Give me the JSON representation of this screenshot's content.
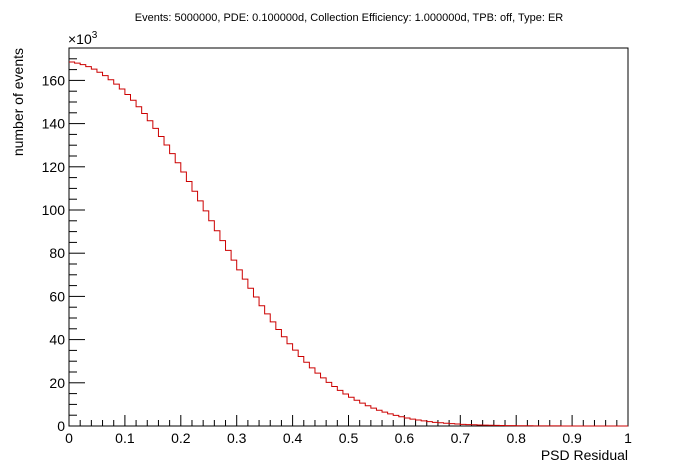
{
  "chart_data": {
    "type": "bar",
    "title": "Events: 5000000, PDE: 0.100000d, Collection Efficiency: 1.000000d, TPB: off, Type: ER",
    "xlabel": "PSD Residual",
    "ylabel": "number of events",
    "y_multiplier_label": "×10",
    "y_multiplier_exponent": "3",
    "xlim": [
      0,
      1
    ],
    "ylim": [
      0,
      175
    ],
    "grid": false,
    "legend": "none",
    "line_color": "#cc0000",
    "bin_width": 0.01,
    "x_ticks": [
      "0",
      "0.1",
      "0.2",
      "0.3",
      "0.4",
      "0.5",
      "0.6",
      "0.7",
      "0.8",
      "0.9",
      "1"
    ],
    "y_ticks": [
      "0",
      "20",
      "40",
      "60",
      "80",
      "100",
      "120",
      "140",
      "160"
    ],
    "values": [
      168.5,
      168,
      167.3,
      166.4,
      165.2,
      163.8,
      162.2,
      160.3,
      158.3,
      156,
      153.5,
      150.8,
      147.8,
      144.7,
      141.3,
      137.8,
      134,
      130.1,
      126.1,
      121.9,
      117.6,
      113.2,
      108.7,
      104.2,
      99.6,
      95,
      90.4,
      85.8,
      81.3,
      76.8,
      72.3,
      68,
      63.8,
      59.7,
      55.7,
      51.9,
      48.2,
      44.7,
      41.3,
      38.1,
      35.1,
      32.2,
      29.5,
      26.9,
      24.5,
      22.3,
      20.2,
      18.3,
      16.5,
      14.8,
      13.3,
      11.9,
      10.6,
      9.4,
      8.3,
      7.3,
      6.4,
      5.6,
      4.9,
      4.3,
      3.7,
      3.2,
      2.8,
      2.4,
      2,
      1.7,
      1.5,
      1.3,
      1.1,
      0.9,
      0.78,
      0.66,
      0.56,
      0.47,
      0.4,
      0.33,
      0.28,
      0.23,
      0.19,
      0.16,
      0.13,
      0.11,
      0.09,
      0.07,
      0.06,
      0.05,
      0.04,
      0.03,
      0.025,
      0.02,
      0.015,
      0.012,
      0.009,
      0.007,
      0.005,
      0.004,
      0.003,
      0.002,
      0.001,
      0
    ]
  }
}
